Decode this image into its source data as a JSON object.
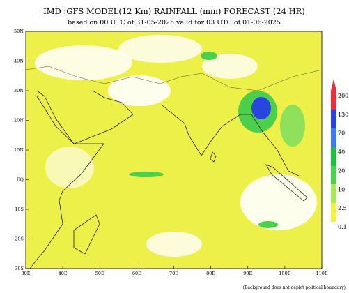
{
  "header": {
    "title": "IMD :GFS MODEL(12 Km) RAINFALL (mm) FORECAST (24 HR)",
    "subtitle": "based on 00 UTC of 31-05-2025 valid for 03 UTC of 01-06-2025"
  },
  "map": {
    "lat_labels": [
      "50N",
      "40N",
      "30N",
      "20N",
      "10N",
      "EQ",
      "10S",
      "20S",
      "30S"
    ],
    "lon_labels": [
      "30E",
      "40E",
      "50E",
      "60E",
      "70E",
      "80E",
      "90E",
      "100E",
      "110E"
    ]
  },
  "colorbar": {
    "labels": [
      "200",
      "130",
      "70",
      "40",
      "20",
      "10",
      "2.5",
      "0.1"
    ]
  },
  "footer": {
    "note": "(Background does not depict political boundary)"
  }
}
